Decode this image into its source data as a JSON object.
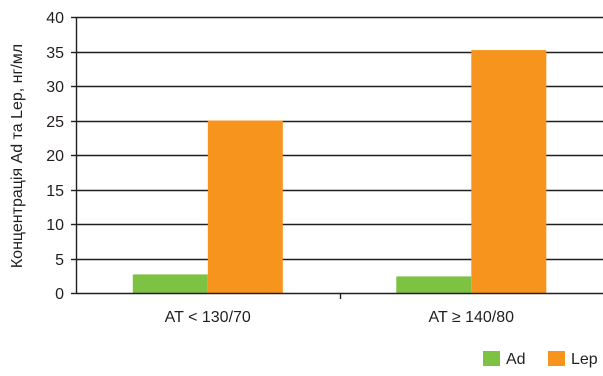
{
  "chart_data": {
    "type": "bar",
    "title": "",
    "xlabel": "",
    "ylabel": "Концентрація Ad та Lep, нг/мл",
    "ylim": [
      0,
      40
    ],
    "yticks": [
      0,
      5,
      10,
      15,
      20,
      25,
      30,
      35,
      40
    ],
    "grid": true,
    "legend_position": "bottom-right",
    "categories": [
      "AT < 130/70",
      "AT ≥ 140/80"
    ],
    "series": [
      {
        "name": "Ad",
        "color": "#7dc242",
        "values": [
          2.7,
          2.4
        ]
      },
      {
        "name": "Lep",
        "color": "#f7941d",
        "values": [
          25.0,
          35.2
        ]
      }
    ]
  }
}
